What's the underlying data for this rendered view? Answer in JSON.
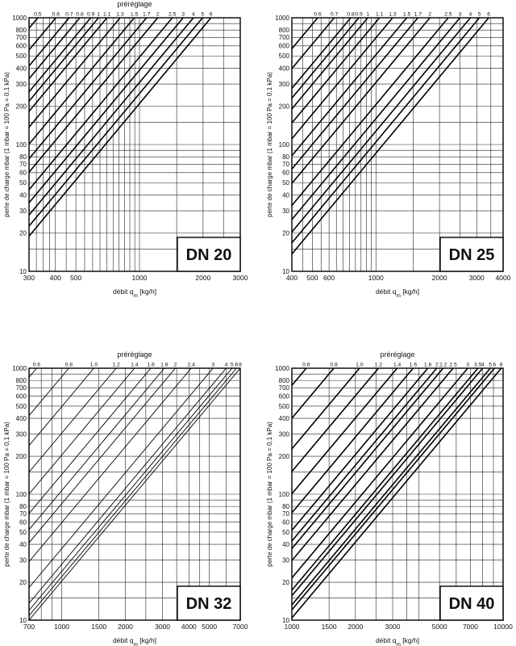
{
  "chart_data": [
    {
      "type": "line",
      "scale": "log-log",
      "dn_label": "DN 20",
      "title": "préréglage",
      "xlabel_main": "débit q",
      "xlabel_sub": "m",
      "xlabel_unit": " [kg/h]",
      "ylabel": "perte de charge mbar (1 mbar = 100 Pa = 0,1 kPa)",
      "xlim": [
        300,
        3000
      ],
      "ylim": [
        10,
        1000
      ],
      "x_ticks": [
        300,
        400,
        500,
        1000,
        2000,
        3000
      ],
      "y_ticks": [
        10,
        20,
        30,
        40,
        50,
        60,
        70,
        80,
        100,
        200,
        300,
        400,
        500,
        600,
        700,
        800,
        1000
      ],
      "series": [
        {
          "name": "0.5",
          "x_at_max": 330
        },
        {
          "name": "0.6",
          "x_at_max": 402
        },
        {
          "name": "0.7",
          "x_at_max": 465
        },
        {
          "name": "0.8",
          "x_at_max": 522
        },
        {
          "name": "0.9",
          "x_at_max": 588
        },
        {
          "name": "1",
          "x_at_max": 640
        },
        {
          "name": "1.1",
          "x_at_max": 702
        },
        {
          "name": "1.3",
          "x_at_max": 810
        },
        {
          "name": "1.5",
          "x_at_max": 945
        },
        {
          "name": "1.7",
          "x_at_max": 1080
        },
        {
          "name": "2",
          "x_at_max": 1220
        },
        {
          "name": "2.5",
          "x_at_max": 1430
        },
        {
          "name": "3",
          "x_at_max": 1610
        },
        {
          "name": "4",
          "x_at_max": 1800
        },
        {
          "name": "5",
          "x_at_max": 1990
        },
        {
          "name": "6",
          "x_at_max": 2180
        }
      ]
    },
    {
      "type": "line",
      "scale": "log-log",
      "dn_label": "DN 25",
      "title": "",
      "xlabel_main": "débit q",
      "xlabel_sub": "m",
      "xlabel_unit": " [kg/h]",
      "ylabel": "perte de charge mbar (1 mbar = 100 Pa = 0,1 kPa)",
      "xlim": [
        400,
        4000
      ],
      "ylim": [
        10,
        1000
      ],
      "x_ticks": [
        400,
        500,
        600,
        1000,
        2000,
        3000,
        4000
      ],
      "y_ticks": [
        10,
        20,
        30,
        40,
        50,
        60,
        70,
        80,
        100,
        200,
        300,
        400,
        500,
        600,
        700,
        800,
        1000
      ],
      "series": [
        {
          "name": "0.6",
          "x_at_max": 530
        },
        {
          "name": "0.7",
          "x_at_max": 635
        },
        {
          "name": "0.8",
          "x_at_max": 760
        },
        {
          "name": "0.9",
          "x_at_max": 830
        },
        {
          "name": "1",
          "x_at_max": 915
        },
        {
          "name": "1.1",
          "x_at_max": 1040
        },
        {
          "name": "1.3",
          "x_at_max": 1200
        },
        {
          "name": "1.5",
          "x_at_max": 1400
        },
        {
          "name": "1.7",
          "x_at_max": 1580
        },
        {
          "name": "2",
          "x_at_max": 1800
        },
        {
          "name": "2.5",
          "x_at_max": 2200
        },
        {
          "name": "3",
          "x_at_max": 2500
        },
        {
          "name": "4",
          "x_at_max": 2800
        },
        {
          "name": "5",
          "x_at_max": 3090
        },
        {
          "name": "6",
          "x_at_max": 3420
        }
      ]
    },
    {
      "type": "line",
      "scale": "log-log",
      "dn_label": "DN 32",
      "title": "préréglage",
      "xlabel_main": "débit q",
      "xlabel_sub": "m",
      "xlabel_unit": " [kg/h]",
      "ylabel": "perte de charge mbar (1 mbar = 100 Pa = 0,1 kPa)",
      "xlim": [
        700,
        7000
      ],
      "ylim": [
        10,
        1000
      ],
      "x_ticks": [
        700,
        1000,
        1500,
        2000,
        3000,
        4000,
        5000,
        7000
      ],
      "y_ticks": [
        10,
        20,
        30,
        40,
        50,
        60,
        70,
        80,
        100,
        200,
        300,
        400,
        500,
        600,
        700,
        800,
        1000
      ],
      "series": [
        {
          "name": "0.6",
          "x_at_max": 760
        },
        {
          "name": "0.8",
          "x_at_max": 1080
        },
        {
          "name": "1.0",
          "x_at_max": 1420
        },
        {
          "name": "1.2",
          "x_at_max": 1810
        },
        {
          "name": "1.4",
          "x_at_max": 2210
        },
        {
          "name": "1.6",
          "x_at_max": 2640
        },
        {
          "name": "1.8",
          "x_at_max": 3060
        },
        {
          "name": "2",
          "x_at_max": 3450
        },
        {
          "name": "2.4",
          "x_at_max": 4100
        },
        {
          "name": "3",
          "x_at_max": 5200
        },
        {
          "name": "4",
          "x_at_max": 6000
        },
        {
          "name": "5",
          "x_at_max": 6400
        },
        {
          "name": "6",
          "x_at_max": 6720
        },
        {
          "name": "8",
          "x_at_max": 7000
        }
      ]
    },
    {
      "type": "line",
      "scale": "log-log",
      "dn_label": "DN 40",
      "title": "préréglage",
      "xlabel_main": "débit q",
      "xlabel_sub": "m",
      "xlabel_unit": " [kg/h]",
      "ylabel": "perte de charge mbar (1 mbar = 100 Pa = 0,1 kPa)",
      "xlim": [
        1000,
        10000
      ],
      "ylim": [
        10,
        1000
      ],
      "x_ticks": [
        1000,
        1500,
        2000,
        3000,
        5000,
        7000,
        10000
      ],
      "y_ticks": [
        10,
        20,
        30,
        40,
        50,
        60,
        70,
        80,
        100,
        200,
        300,
        400,
        500,
        600,
        700,
        800,
        1000
      ],
      "series": [
        {
          "name": "0.6",
          "x_at_max": 1170
        },
        {
          "name": "0.8",
          "x_at_max": 1580
        },
        {
          "name": "1.0",
          "x_at_max": 2090
        },
        {
          "name": "1.2",
          "x_at_max": 2570
        },
        {
          "name": "1.4",
          "x_at_max": 3150
        },
        {
          "name": "1.6",
          "x_at_max": 3750
        },
        {
          "name": "1.8",
          "x_at_max": 4400
        },
        {
          "name": "2",
          "x_at_max": 4850
        },
        {
          "name": "2.2",
          "x_at_max": 5200
        },
        {
          "name": "2.5",
          "x_at_max": 5800
        },
        {
          "name": "3",
          "x_at_max": 6800
        },
        {
          "name": "3.5",
          "x_at_max": 7600
        },
        {
          "name": "4",
          "x_at_max": 8000
        },
        {
          "name": "5",
          "x_at_max": 8700
        },
        {
          "name": "6",
          "x_at_max": 9100
        },
        {
          "name": "8",
          "x_at_max": 9800
        }
      ]
    }
  ]
}
